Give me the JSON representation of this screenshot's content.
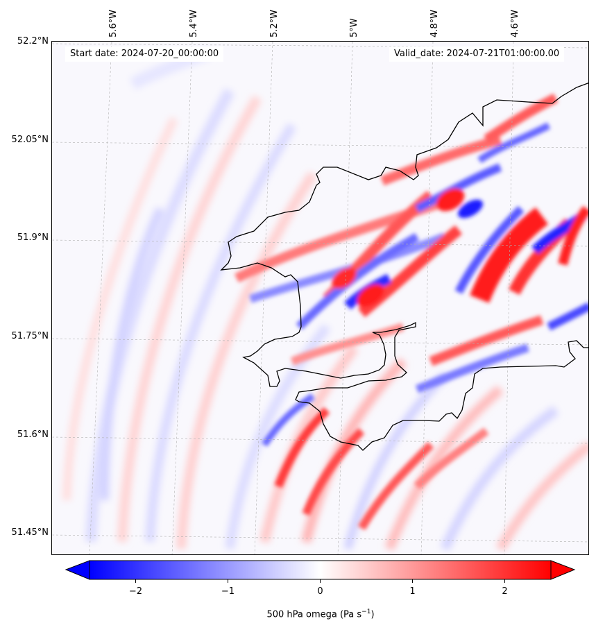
{
  "map": {
    "start_date": "Start date: 2024-07-20_00:00:00",
    "valid_date": "Valid_date: 2024-07-21T01:00:00.00",
    "latitude_labels": [
      "52.2°N",
      "52.05°N",
      "51.9°N",
      "51.75°N",
      "51.6°N",
      "51.45°N"
    ],
    "longitude_labels": [
      "5.6°W",
      "5.4°W",
      "5.2°W",
      "5°W",
      "4.8°W",
      "4.6°W"
    ],
    "field": "500 hPa omega",
    "coastline_color": "#000000",
    "gridline_color": "#b0b0b0"
  },
  "colorbar": {
    "title": "500 hPa omega (Pa s",
    "title_superscript": "−1",
    "title_suffix": ")",
    "min": -2.5,
    "max": 2.5,
    "tick_values": [
      -2,
      -1,
      0,
      1,
      2
    ],
    "tick_labels": [
      "−2",
      "−1",
      "0",
      "1",
      "2"
    ],
    "colormap": "bwr",
    "low_color": "#0000ff",
    "mid_color": "#ffffff",
    "high_color": "#ff0000",
    "extend": "both"
  }
}
